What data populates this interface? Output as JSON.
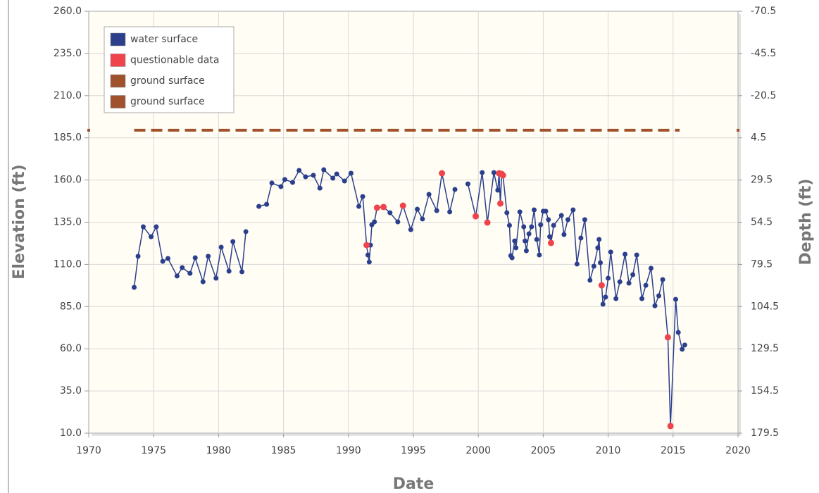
{
  "chart_data": {
    "type": "line",
    "x_label": "Date",
    "y_label": "Elevation (ft)",
    "y2_label": "Depth (ft)",
    "xlim": [
      1970,
      2020
    ],
    "xticks": [
      1970,
      1975,
      1980,
      1985,
      1990,
      1995,
      2000,
      2005,
      2010,
      2015,
      2020
    ],
    "ylim": [
      10,
      260
    ],
    "yticks": [
      {
        "value": 260,
        "label": "260.0"
      },
      {
        "value": 235,
        "label": "235.0"
      },
      {
        "value": 210,
        "label": "210.0"
      },
      {
        "value": 185,
        "label": "185.0"
      },
      {
        "value": 160,
        "label": "160.0"
      },
      {
        "value": 135,
        "label": "135.0"
      },
      {
        "value": 110,
        "label": "110.0"
      },
      {
        "value": 85,
        "label": "85.0"
      },
      {
        "value": 60,
        "label": "60.0"
      },
      {
        "value": 35,
        "label": "35.0"
      },
      {
        "value": 10,
        "label": "10.0"
      }
    ],
    "y2lim": [
      -70.5,
      179.5
    ],
    "y2_inverted": true,
    "y2ticks": [
      -70.5,
      -45.5,
      -20.5,
      4.5,
      29.5,
      54.5,
      79.5,
      104.5,
      129.5,
      154.5,
      179.5
    ],
    "grid": true,
    "legend": "top-left",
    "series": [
      {
        "name": "water surface",
        "color": "#2b3f8c",
        "mode": "line+markers",
        "x": [
          1973.5,
          1973.8,
          1974.2,
          1974.8,
          1975.2,
          1975.7,
          1976.1,
          1976.8,
          1977.2,
          1977.8,
          1978.2,
          1978.8,
          1979.2,
          1979.8,
          1980.2,
          1980.8,
          1981.1,
          1981.8,
          1982.1,
          1982.6,
          1983.1,
          1983.7,
          1984.1,
          1984.8,
          1985.1,
          1985.7,
          1986.2,
          1986.7,
          1987.3,
          1987.8,
          1988.1,
          1988.8,
          1989.1,
          1989.7,
          1990.2,
          1990.8,
          1991.1,
          1991.4,
          1991.5,
          1991.6,
          1991.7,
          1991.8,
          1992.0,
          1992.2,
          1992.7,
          1993.2,
          1993.8,
          1994.2,
          1994.8,
          1995.3,
          1995.7,
          1996.2,
          1996.8,
          1997.2,
          1997.8,
          1998.2,
          1998.7,
          1999.2,
          1999.8,
          2000.3,
          2000.7,
          2001.2,
          2001.5,
          2001.6,
          2001.7,
          2001.8,
          2001.9,
          2002.2,
          2002.4,
          2002.5,
          2002.6,
          2002.8,
          2002.9,
          2003.2,
          2003.5,
          2003.6,
          2003.7,
          2003.9,
          2004.1,
          2004.3,
          2004.5,
          2004.7,
          2004.8,
          2005.0,
          2005.2,
          2005.4,
          2005.5,
          2005.6,
          2005.8,
          2006.4,
          2006.6,
          2006.9,
          2007.3,
          2007.6,
          2007.9,
          2008.2,
          2008.6,
          2008.9,
          2009.2,
          2009.3,
          2009.4,
          2009.5,
          2009.6,
          2009.8,
          2010.0,
          2010.2,
          2010.6,
          2010.9,
          2011.3,
          2011.6,
          2011.9,
          2012.2,
          2012.6,
          2012.9,
          2013.3,
          2013.6,
          2013.9,
          2014.2,
          2014.6,
          2014.8,
          2015.2,
          2015.4,
          2015.7,
          2015.9
        ],
        "values": [
          96.4,
          114.8,
          132.3,
          126.4,
          132.3,
          111.8,
          113.5,
          103.1,
          108.1,
          104.7,
          113.9,
          99.7,
          114.8,
          101.8,
          120.2,
          106,
          123.5,
          105.6,
          129.4,
          null,
          144.4,
          145.6,
          158.2,
          156.1,
          160.3,
          158.6,
          165.7,
          161.9,
          162.8,
          155.2,
          166.1,
          161.1,
          163.6,
          159.4,
          164,
          144.4,
          150.2,
          121.4,
          115.6,
          111.4,
          121.4,
          133.5,
          135.2,
          143.6,
          144,
          140.6,
          135.2,
          144.8,
          130.6,
          142.7,
          136.9,
          151.5,
          141.9,
          164,
          141.1,
          154.4,
          null,
          157.7,
          138.5,
          164.4,
          134.8,
          164.4,
          154,
          164,
          146.1,
          163.6,
          162.8,
          140.6,
          133.1,
          115.2,
          113.9,
          123.9,
          119.8,
          141.1,
          132.3,
          123.9,
          118.1,
          128.1,
          132.3,
          142.3,
          124.8,
          115.6,
          133.5,
          141.5,
          141.5,
          136.5,
          126.4,
          122.7,
          133.1,
          139,
          127.7,
          136.5,
          142.3,
          110.2,
          125.6,
          136.5,
          100.6,
          108.9,
          119.8,
          124.8,
          111,
          97.6,
          86.4,
          90.6,
          101.8,
          117.3,
          89.7,
          99.7,
          116,
          98.9,
          103.9,
          115.6,
          89.7,
          97.6,
          107.7,
          85.5,
          91.4,
          101,
          66.8,
          14.2,
          89.3,
          69.7,
          59.7,
          62.2
        ]
      },
      {
        "name": "questionable data",
        "color": "#f0444c",
        "mode": "markers",
        "x": [
          1991.4,
          1992.2,
          1992.7,
          1994.2,
          1997.2,
          1999.8,
          2000.7,
          2001.6,
          2001.7,
          2001.8,
          2001.9,
          2005.6,
          2009.5,
          2014.6,
          2014.8
        ],
        "values": [
          121.4,
          143.6,
          144,
          144.8,
          164,
          138.5,
          134.8,
          164,
          146.1,
          163.6,
          162.8,
          122.7,
          97.6,
          66.8,
          14.2
        ]
      },
      {
        "name": "ground surface",
        "color": "#a0522d",
        "mode": "dashed",
        "x": [
          1973.5,
          2015.5
        ],
        "values": [
          189.5,
          189.5
        ]
      },
      {
        "name": "ground surface",
        "color": "#a0522d",
        "mode": "ticks",
        "x": [
          1970,
          2020
        ],
        "values": [
          189.5,
          189.5
        ]
      }
    ]
  }
}
